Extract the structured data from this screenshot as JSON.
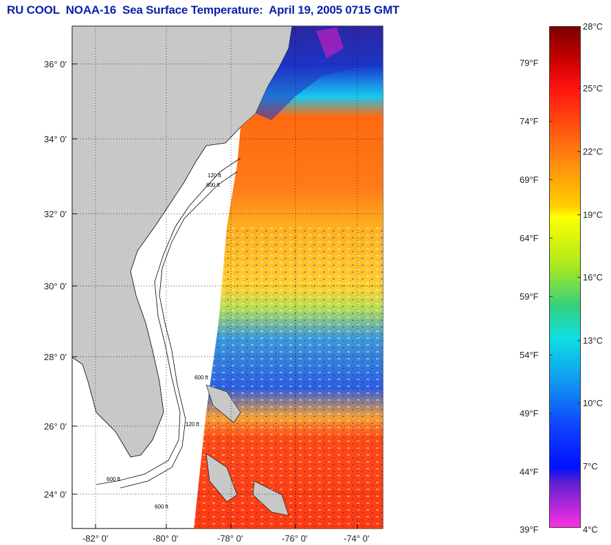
{
  "title": "RU COOL  NOAA-16  Sea Surface Temperature:  April 19, 2005 0715 GMT",
  "map": {
    "lat_labels": [
      "36° 0'",
      "34° 0'",
      "32° 0'",
      "30° 0'",
      "28° 0'",
      "26° 0'",
      "24° 0'"
    ],
    "lon_labels": [
      "-82° 0'",
      "-80° 0'",
      "-78° 0'",
      "-76° 0'",
      "-74° 0'"
    ],
    "isobath_labels": [
      "120 ft",
      "600 ft",
      "600 ft",
      "120 ft",
      "600 ft",
      "600 ft"
    ],
    "colors": {
      "land": "#c8c8c8",
      "water_nodata": "#ffffff",
      "title": "#0b1fa8"
    }
  },
  "colorbar": {
    "fahrenheit_labels": [
      "79°F",
      "74°F",
      "69°F",
      "64°F",
      "59°F",
      "54°F",
      "49°F",
      "44°F",
      "39°F"
    ],
    "celsius_labels": [
      "28°C",
      "25°C",
      "22°C",
      "19°C",
      "16°C",
      "13°C",
      "10°C",
      "7°C",
      "4°C"
    ],
    "range_celsius": [
      4,
      28
    ],
    "range_fahrenheit": [
      39,
      82
    ]
  }
}
